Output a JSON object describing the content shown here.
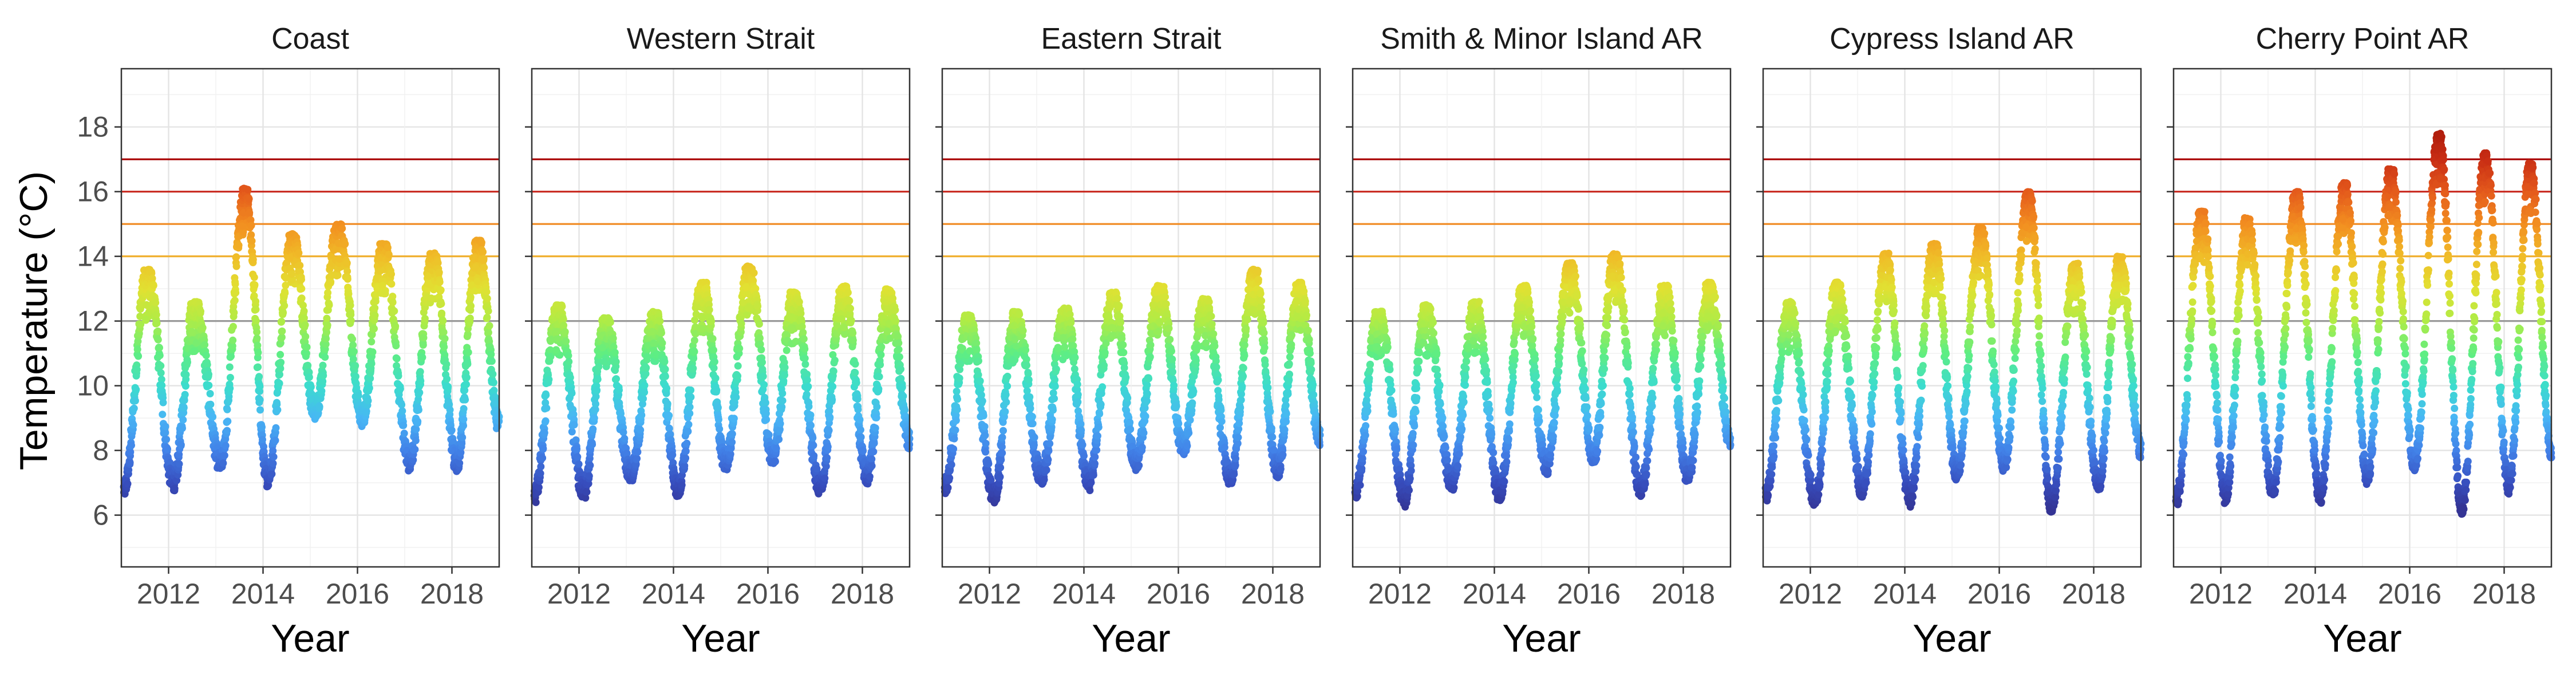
{
  "chart_data": {
    "type": "scatter",
    "ylabel": "Temperature (°C)",
    "xlabel": "Year",
    "ylim": [
      4.4,
      19.8
    ],
    "xlim": [
      2011.0,
      2019.0
    ],
    "yticks": [
      6,
      8,
      10,
      12,
      14,
      16,
      18
    ],
    "xticks": [
      2012,
      2014,
      2016,
      2018
    ],
    "reference_lines": [
      {
        "y": 12,
        "color": "#9a9a9a"
      },
      {
        "y": 14,
        "color": "#f0b030"
      },
      {
        "y": 15,
        "color": "#f08a20"
      },
      {
        "y": 16,
        "color": "#c8281e"
      },
      {
        "y": 17,
        "color": "#a80000"
      }
    ],
    "grid": true,
    "color_scale": "temperature gradient (blue low → green → yellow → red high)",
    "panels": [
      {
        "title": "Coast",
        "baseline": 10.6,
        "amp": 2.3,
        "peaks": [
          {
            "x": 2011.55,
            "y": 13.6
          },
          {
            "x": 2012.55,
            "y": 12.6
          },
          {
            "x": 2013.62,
            "y": 16.1
          },
          {
            "x": 2014.62,
            "y": 14.7
          },
          {
            "x": 2015.6,
            "y": 15.0
          },
          {
            "x": 2016.55,
            "y": 14.4
          },
          {
            "x": 2017.6,
            "y": 14.1
          },
          {
            "x": 2018.55,
            "y": 14.5
          }
        ],
        "troughs": [
          {
            "x": 2011.05,
            "y": 6.8
          },
          {
            "x": 2012.1,
            "y": 7.0
          },
          {
            "x": 2013.1,
            "y": 7.6
          },
          {
            "x": 2014.1,
            "y": 7.1
          },
          {
            "x": 2015.1,
            "y": 9.2
          },
          {
            "x": 2016.1,
            "y": 9.0
          },
          {
            "x": 2017.1,
            "y": 7.6
          },
          {
            "x": 2018.1,
            "y": 7.6
          },
          {
            "x": 2019.0,
            "y": 8.8
          }
        ]
      },
      {
        "title": "Western Strait",
        "baseline": 9.6,
        "amp": 2.0,
        "peaks": [
          {
            "x": 2011.55,
            "y": 12.5
          },
          {
            "x": 2012.55,
            "y": 12.1
          },
          {
            "x": 2013.6,
            "y": 12.3
          },
          {
            "x": 2014.62,
            "y": 13.2
          },
          {
            "x": 2015.6,
            "y": 13.7
          },
          {
            "x": 2016.55,
            "y": 12.9
          },
          {
            "x": 2017.6,
            "y": 13.1
          },
          {
            "x": 2018.55,
            "y": 13.0
          }
        ],
        "troughs": [
          {
            "x": 2011.05,
            "y": 6.6
          },
          {
            "x": 2012.1,
            "y": 6.7
          },
          {
            "x": 2013.1,
            "y": 7.3
          },
          {
            "x": 2014.1,
            "y": 6.8
          },
          {
            "x": 2015.1,
            "y": 7.6
          },
          {
            "x": 2016.1,
            "y": 7.8
          },
          {
            "x": 2017.1,
            "y": 6.9
          },
          {
            "x": 2018.1,
            "y": 7.2
          },
          {
            "x": 2019.0,
            "y": 8.3
          }
        ]
      },
      {
        "title": "Eastern Strait",
        "baseline": 9.6,
        "amp": 1.9,
        "peaks": [
          {
            "x": 2011.55,
            "y": 12.2
          },
          {
            "x": 2012.55,
            "y": 12.3
          },
          {
            "x": 2013.6,
            "y": 12.4
          },
          {
            "x": 2014.62,
            "y": 12.9
          },
          {
            "x": 2015.6,
            "y": 13.1
          },
          {
            "x": 2016.55,
            "y": 12.7
          },
          {
            "x": 2017.6,
            "y": 13.6
          },
          {
            "x": 2018.55,
            "y": 13.2
          }
        ],
        "troughs": [
          {
            "x": 2011.05,
            "y": 6.9
          },
          {
            "x": 2012.1,
            "y": 6.6
          },
          {
            "x": 2013.1,
            "y": 7.2
          },
          {
            "x": 2014.1,
            "y": 7.0
          },
          {
            "x": 2015.1,
            "y": 7.6
          },
          {
            "x": 2016.1,
            "y": 8.1
          },
          {
            "x": 2017.1,
            "y": 7.2
          },
          {
            "x": 2018.1,
            "y": 7.4
          },
          {
            "x": 2019.0,
            "y": 8.4
          }
        ]
      },
      {
        "title": "Smith & Minor Island AR",
        "baseline": 9.8,
        "amp": 2.0,
        "peaks": [
          {
            "x": 2011.55,
            "y": 12.3
          },
          {
            "x": 2012.55,
            "y": 12.5
          },
          {
            "x": 2013.6,
            "y": 12.6
          },
          {
            "x": 2014.62,
            "y": 13.1
          },
          {
            "x": 2015.6,
            "y": 13.8
          },
          {
            "x": 2016.55,
            "y": 14.1
          },
          {
            "x": 2017.6,
            "y": 13.1
          },
          {
            "x": 2018.55,
            "y": 13.2
          }
        ],
        "troughs": [
          {
            "x": 2011.05,
            "y": 6.7
          },
          {
            "x": 2012.1,
            "y": 6.5
          },
          {
            "x": 2013.1,
            "y": 7.0
          },
          {
            "x": 2014.1,
            "y": 6.7
          },
          {
            "x": 2015.1,
            "y": 7.5
          },
          {
            "x": 2016.1,
            "y": 7.8
          },
          {
            "x": 2017.1,
            "y": 6.8
          },
          {
            "x": 2018.1,
            "y": 7.2
          },
          {
            "x": 2019.0,
            "y": 8.3
          }
        ]
      },
      {
        "title": "Cypress Island AR",
        "baseline": 10.0,
        "amp": 2.4,
        "peaks": [
          {
            "x": 2011.55,
            "y": 12.6
          },
          {
            "x": 2012.55,
            "y": 13.2
          },
          {
            "x": 2013.6,
            "y": 14.1
          },
          {
            "x": 2014.62,
            "y": 14.4
          },
          {
            "x": 2015.6,
            "y": 14.9
          },
          {
            "x": 2016.62,
            "y": 16.0
          },
          {
            "x": 2017.6,
            "y": 13.8
          },
          {
            "x": 2018.55,
            "y": 14.0
          }
        ],
        "troughs": [
          {
            "x": 2011.05,
            "y": 6.6
          },
          {
            "x": 2012.1,
            "y": 6.5
          },
          {
            "x": 2013.1,
            "y": 6.8
          },
          {
            "x": 2014.1,
            "y": 6.5
          },
          {
            "x": 2015.1,
            "y": 7.3
          },
          {
            "x": 2016.1,
            "y": 7.6
          },
          {
            "x": 2017.1,
            "y": 6.3
          },
          {
            "x": 2018.1,
            "y": 7.0
          },
          {
            "x": 2019.0,
            "y": 8.0
          }
        ]
      },
      {
        "title": "Cherry Point AR",
        "baseline": 10.6,
        "amp": 3.0,
        "peaks": [
          {
            "x": 2011.6,
            "y": 15.4
          },
          {
            "x": 2012.55,
            "y": 15.2
          },
          {
            "x": 2013.6,
            "y": 16.0
          },
          {
            "x": 2014.62,
            "y": 16.3
          },
          {
            "x": 2015.6,
            "y": 16.7
          },
          {
            "x": 2016.62,
            "y": 17.8
          },
          {
            "x": 2017.6,
            "y": 17.2
          },
          {
            "x": 2018.55,
            "y": 16.9
          }
        ],
        "troughs": [
          {
            "x": 2011.05,
            "y": 6.5
          },
          {
            "x": 2012.1,
            "y": 6.6
          },
          {
            "x": 2013.1,
            "y": 6.8
          },
          {
            "x": 2014.1,
            "y": 6.6
          },
          {
            "x": 2015.1,
            "y": 7.2
          },
          {
            "x": 2016.1,
            "y": 7.6
          },
          {
            "x": 2017.1,
            "y": 6.2
          },
          {
            "x": 2018.1,
            "y": 6.9
          },
          {
            "x": 2019.0,
            "y": 8.0
          }
        ]
      }
    ]
  }
}
